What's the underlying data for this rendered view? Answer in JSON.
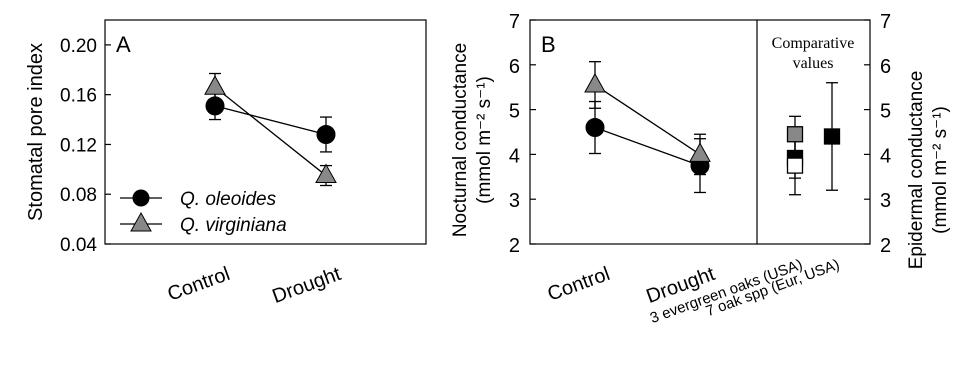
{
  "chart_data": [
    {
      "panel": "A",
      "type": "line",
      "ylabel": "Stomatal pore index",
      "categories": [
        "Control",
        "Drought"
      ],
      "ylim": [
        0.04,
        0.22
      ],
      "yticks": [
        "0.04",
        "0.08",
        "0.12",
        "0.16",
        "0.20"
      ],
      "legend_position": "bottom-left",
      "series": [
        {
          "name": "Q. oleoides",
          "marker": "circle",
          "fill": "#000000",
          "values": [
            0.151,
            0.128
          ],
          "errors": [
            0.011,
            0.014
          ]
        },
        {
          "name": "Q. virginiana",
          "marker": "triangle",
          "fill": "#888888",
          "values": [
            0.166,
            0.095
          ],
          "errors": [
            0.011,
            0.008
          ]
        }
      ]
    },
    {
      "panel": "B",
      "type": "line",
      "ylabel_lines": [
        "Nocturnal conductance",
        "(mmol m⁻² s⁻¹)"
      ],
      "ylabel_right_lines": [
        "Epidermal conductance",
        "(mmol m⁻² s⁻¹)"
      ],
      "categories": [
        "Control",
        "Drought"
      ],
      "ylim": [
        2,
        7
      ],
      "yticks": [
        "2",
        "3",
        "4",
        "5",
        "6",
        "7"
      ],
      "series": [
        {
          "marker": "circle",
          "fill": "#000000",
          "values": [
            4.6,
            3.75
          ],
          "errors": [
            0.58,
            0.6
          ]
        },
        {
          "marker": "triangle",
          "fill": "#888888",
          "values": [
            5.55,
            4.0
          ],
          "errors": [
            0.52,
            0.45
          ]
        }
      ],
      "comparative": {
        "title_lines": [
          "Comparative",
          "values"
        ],
        "categories": [
          "3 evergreen oaks (USA)",
          "7 oak spp (Eur, USA)"
        ],
        "points": [
          {
            "category": 0,
            "marker": "square",
            "fill": "#888888",
            "value": 4.45,
            "error": 0.4
          },
          {
            "category": 0,
            "marker": "square",
            "fill": "#000000",
            "value": 3.92,
            "error": 0.45
          },
          {
            "category": 0,
            "marker": "square",
            "fill": "#ffffff",
            "value": 3.75,
            "error": 0.65
          },
          {
            "category": 1,
            "marker": "square",
            "fill": "#000000",
            "value": 4.4,
            "low": 3.2,
            "high": 5.6
          }
        ]
      }
    }
  ]
}
